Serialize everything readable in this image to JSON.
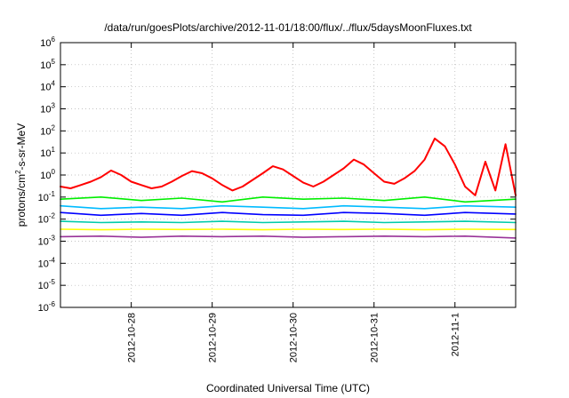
{
  "chart_data": {
    "type": "line",
    "title": "/data/run/goesPlots/archive/2012-11-01/18:00/flux/../flux/5daysMoonFluxes.txt",
    "xlabel": "Coordinated Universal Time (UTC)",
    "ylabel": "protons/cm²-s-sr-MeV",
    "ylabel_parts": {
      "base": "protons/cm",
      "exp": "2",
      "rest": "-s-sr-MeV"
    },
    "yscale": "log",
    "ylim": [
      1e-06,
      1000000.0
    ],
    "xlim": [
      "2012-10-27 03:00",
      "2012-11-01 18:00"
    ],
    "grid": true,
    "ytick_values": [
      1e-06,
      1e-05,
      0.0001,
      0.001,
      0.01,
      0.1,
      1.0,
      10.0,
      100.0,
      1000.0,
      10000.0,
      100000.0,
      1000000.0
    ],
    "ytick_labels": [
      {
        "base": "10",
        "exp": "-6"
      },
      {
        "base": "10",
        "exp": "-5"
      },
      {
        "base": "10",
        "exp": "-4"
      },
      {
        "base": "10",
        "exp": "-3"
      },
      {
        "base": "10",
        "exp": "-2"
      },
      {
        "base": "10",
        "exp": "-1"
      },
      {
        "base": "10",
        "exp": "0"
      },
      {
        "base": "10",
        "exp": "1"
      },
      {
        "base": "10",
        "exp": "2"
      },
      {
        "base": "10",
        "exp": "3"
      },
      {
        "base": "10",
        "exp": "4"
      },
      {
        "base": "10",
        "exp": "5"
      },
      {
        "base": "10",
        "exp": "6"
      }
    ],
    "xtick_labels": [
      "2012-10-28",
      "2012-10-29",
      "2012-10-30",
      "2012-10-31",
      "2012-11-1"
    ],
    "xtick_values": [
      "2012-10-28 00:00",
      "2012-10-29 00:00",
      "2012-10-30 00:00",
      "2012-10-31 00:00",
      "2012-11-01 00:00"
    ],
    "series": [
      {
        "color": "#ff0000",
        "points": [
          [
            "2012-10-27 03:00",
            0.3
          ],
          [
            "2012-10-27 06:00",
            0.25
          ],
          [
            "2012-10-27 09:00",
            0.35
          ],
          [
            "2012-10-27 12:00",
            0.5
          ],
          [
            "2012-10-27 15:00",
            0.8
          ],
          [
            "2012-10-27 18:00",
            1.6
          ],
          [
            "2012-10-27 21:00",
            1.0
          ],
          [
            "2012-10-28 00:00",
            0.5
          ],
          [
            "2012-10-28 03:00",
            0.35
          ],
          [
            "2012-10-28 06:00",
            0.25
          ],
          [
            "2012-10-28 09:00",
            0.3
          ],
          [
            "2012-10-28 12:00",
            0.5
          ],
          [
            "2012-10-28 15:00",
            0.9
          ],
          [
            "2012-10-28 18:00",
            1.5
          ],
          [
            "2012-10-28 21:00",
            1.2
          ],
          [
            "2012-10-29 00:00",
            0.7
          ],
          [
            "2012-10-29 03:00",
            0.35
          ],
          [
            "2012-10-29 06:00",
            0.2
          ],
          [
            "2012-10-29 09:00",
            0.3
          ],
          [
            "2012-10-29 12:00",
            0.6
          ],
          [
            "2012-10-29 15:00",
            1.2
          ],
          [
            "2012-10-29 18:00",
            2.5
          ],
          [
            "2012-10-29 21:00",
            1.8
          ],
          [
            "2012-10-30 00:00",
            0.9
          ],
          [
            "2012-10-30 03:00",
            0.45
          ],
          [
            "2012-10-30 06:00",
            0.3
          ],
          [
            "2012-10-30 09:00",
            0.5
          ],
          [
            "2012-10-30 12:00",
            1.0
          ],
          [
            "2012-10-30 15:00",
            2.0
          ],
          [
            "2012-10-30 18:00",
            5.0
          ],
          [
            "2012-10-30 21:00",
            3.0
          ],
          [
            "2012-10-31 00:00",
            1.2
          ],
          [
            "2012-10-31 03:00",
            0.5
          ],
          [
            "2012-10-31 06:00",
            0.4
          ],
          [
            "2012-10-31 09:00",
            0.7
          ],
          [
            "2012-10-31 12:00",
            1.5
          ],
          [
            "2012-10-31 15:00",
            5.0
          ],
          [
            "2012-10-31 18:00",
            45.0
          ],
          [
            "2012-10-31 21:00",
            20.0
          ],
          [
            "2012-11-01 00:00",
            3.0
          ],
          [
            "2012-11-01 03:00",
            0.3
          ],
          [
            "2012-11-01 06:00",
            0.12
          ],
          [
            "2012-11-01 09:00",
            4.0
          ],
          [
            "2012-11-01 12:00",
            0.2
          ],
          [
            "2012-11-01 15:00",
            25.0
          ],
          [
            "2012-11-01 18:00",
            0.12
          ]
        ]
      },
      {
        "color": "#00ee00",
        "points": [
          [
            "2012-10-27 03:00",
            0.08
          ],
          [
            "2012-10-27 15:00",
            0.1
          ],
          [
            "2012-10-28 03:00",
            0.07
          ],
          [
            "2012-10-28 15:00",
            0.09
          ],
          [
            "2012-10-29 03:00",
            0.06
          ],
          [
            "2012-10-29 15:00",
            0.1
          ],
          [
            "2012-10-30 03:00",
            0.08
          ],
          [
            "2012-10-30 15:00",
            0.09
          ],
          [
            "2012-10-31 03:00",
            0.07
          ],
          [
            "2012-10-31 15:00",
            0.1
          ],
          [
            "2012-11-01 03:00",
            0.06
          ],
          [
            "2012-11-01 18:00",
            0.08
          ]
        ]
      },
      {
        "color": "#00bbff",
        "points": [
          [
            "2012-10-27 03:00",
            0.04
          ],
          [
            "2012-10-27 15:00",
            0.03
          ],
          [
            "2012-10-28 03:00",
            0.035
          ],
          [
            "2012-10-28 15:00",
            0.03
          ],
          [
            "2012-10-29 03:00",
            0.04
          ],
          [
            "2012-10-29 15:00",
            0.035
          ],
          [
            "2012-10-30 03:00",
            0.03
          ],
          [
            "2012-10-30 15:00",
            0.04
          ],
          [
            "2012-10-31 03:00",
            0.035
          ],
          [
            "2012-10-31 15:00",
            0.03
          ],
          [
            "2012-11-01 03:00",
            0.04
          ],
          [
            "2012-11-01 18:00",
            0.035
          ]
        ]
      },
      {
        "color": "#0000ff",
        "points": [
          [
            "2012-10-27 03:00",
            0.02
          ],
          [
            "2012-10-27 15:00",
            0.015
          ],
          [
            "2012-10-28 03:00",
            0.018
          ],
          [
            "2012-10-28 15:00",
            0.015
          ],
          [
            "2012-10-29 03:00",
            0.02
          ],
          [
            "2012-10-29 15:00",
            0.016
          ],
          [
            "2012-10-30 03:00",
            0.015
          ],
          [
            "2012-10-30 15:00",
            0.02
          ],
          [
            "2012-10-31 03:00",
            0.018
          ],
          [
            "2012-10-31 15:00",
            0.015
          ],
          [
            "2012-11-01 03:00",
            0.02
          ],
          [
            "2012-11-01 18:00",
            0.017
          ]
        ]
      },
      {
        "color": "#00ccaa",
        "points": [
          [
            "2012-10-27 03:00",
            0.008
          ],
          [
            "2012-10-27 15:00",
            0.007
          ],
          [
            "2012-10-28 03:00",
            0.0075
          ],
          [
            "2012-10-28 15:00",
            0.007
          ],
          [
            "2012-10-29 03:00",
            0.008
          ],
          [
            "2012-10-29 15:00",
            0.007
          ],
          [
            "2012-10-30 03:00",
            0.0075
          ],
          [
            "2012-10-30 15:00",
            0.008
          ],
          [
            "2012-10-31 03:00",
            0.007
          ],
          [
            "2012-10-31 15:00",
            0.0075
          ],
          [
            "2012-11-01 03:00",
            0.008
          ],
          [
            "2012-11-01 18:00",
            0.007
          ]
        ]
      },
      {
        "color": "#ffff00",
        "points": [
          [
            "2012-10-27 03:00",
            0.0035
          ],
          [
            "2012-10-27 15:00",
            0.0033
          ],
          [
            "2012-10-28 03:00",
            0.0035
          ],
          [
            "2012-10-28 15:00",
            0.0034
          ],
          [
            "2012-10-29 03:00",
            0.0035
          ],
          [
            "2012-10-29 15:00",
            0.0033
          ],
          [
            "2012-10-30 03:00",
            0.0035
          ],
          [
            "2012-10-30 15:00",
            0.0034
          ],
          [
            "2012-10-31 03:00",
            0.0035
          ],
          [
            "2012-10-31 15:00",
            0.0033
          ],
          [
            "2012-11-01 03:00",
            0.0035
          ],
          [
            "2012-11-01 18:00",
            0.0034
          ]
        ]
      },
      {
        "color": "#993399",
        "points": [
          [
            "2012-10-27 03:00",
            0.0016
          ],
          [
            "2012-10-27 15:00",
            0.0017
          ],
          [
            "2012-10-28 03:00",
            0.0015
          ],
          [
            "2012-10-28 15:00",
            0.0017
          ],
          [
            "2012-10-29 03:00",
            0.0016
          ],
          [
            "2012-10-29 15:00",
            0.0017
          ],
          [
            "2012-10-30 03:00",
            0.0015
          ],
          [
            "2012-10-30 15:00",
            0.0016
          ],
          [
            "2012-10-31 03:00",
            0.0017
          ],
          [
            "2012-10-31 15:00",
            0.0016
          ],
          [
            "2012-11-01 03:00",
            0.0017
          ],
          [
            "2012-11-01 18:00",
            0.0014
          ]
        ]
      }
    ]
  }
}
